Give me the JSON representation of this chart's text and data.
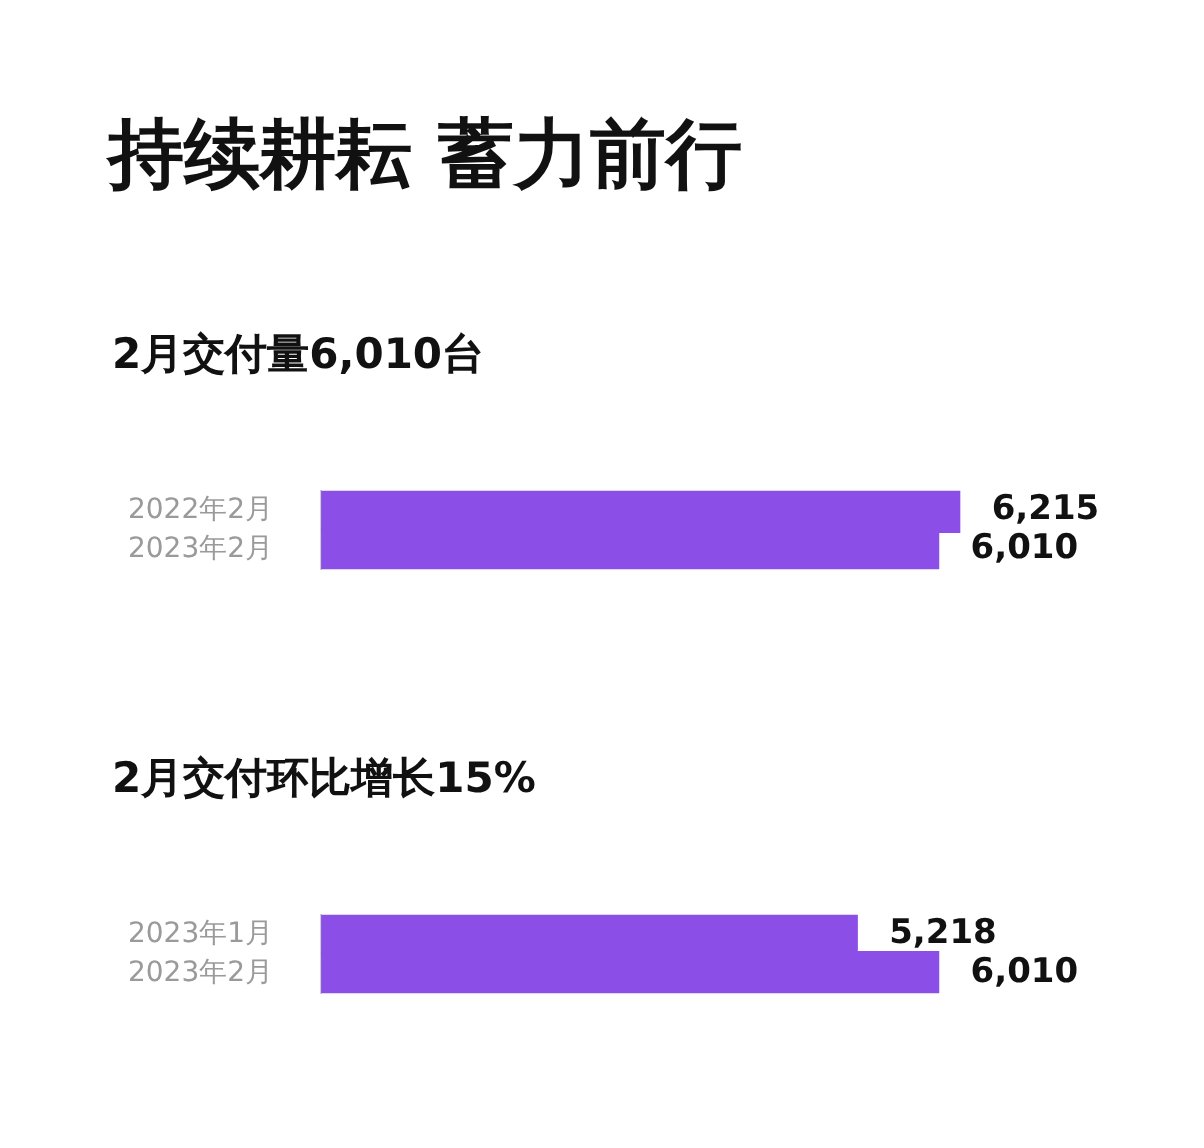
{
  "chart_data": [
    {
      "type": "bar",
      "orientation": "horizontal",
      "title": "持续耕耘 蓄力前行",
      "subtitle": "2月交付量6,010台",
      "categories": [
        "2022年2月",
        "2023年2月"
      ],
      "values": [
        6215,
        6010
      ],
      "color": "#8b4fe8",
      "value_labels": [
        "6,215",
        "6,010"
      ]
    },
    {
      "type": "bar",
      "orientation": "horizontal",
      "title": "2月交付环比增长15%",
      "categories": [
        "2023年1月",
        "2023年2月"
      ],
      "values": [
        5218,
        6010
      ],
      "color": "#8b4fe8",
      "value_labels": [
        "5,218",
        "6,010"
      ]
    }
  ]
}
